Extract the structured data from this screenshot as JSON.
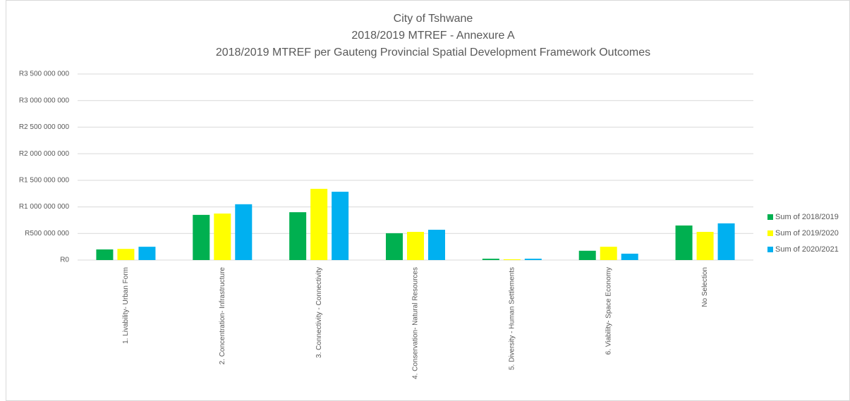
{
  "chart_data": {
    "type": "bar",
    "title": [
      "City of Tshwane",
      "2018/2019 MTREF - Annexure A",
      "2018/2019 MTREF per Gauteng Provincial Spatial Development Framework Outcomes"
    ],
    "categories": [
      "1. Livability- Urban Form",
      "2. Concentration- Infrastructure",
      "3. Connectivity - Connectivity",
      "4. Conservation- Natural Resources",
      "5. Diversity - Human Settlements",
      "6. Viability- Space Economy",
      "No Selection"
    ],
    "series": [
      {
        "name": "Sum of 2018/2019",
        "color": "#00b050",
        "values": [
          200000000,
          850000000,
          900000000,
          505000000,
          25000000,
          175000000,
          650000000
        ]
      },
      {
        "name": "Sum of 2019/2020",
        "color": "#ffff00",
        "values": [
          210000000,
          875000000,
          1340000000,
          530000000,
          15000000,
          250000000,
          530000000
        ]
      },
      {
        "name": "Sum of 2020/2021",
        "color": "#00b0f0",
        "values": [
          250000000,
          1050000000,
          1285000000,
          570000000,
          25000000,
          120000000,
          690000000
        ]
      }
    ],
    "ylim": [
      0,
      3500000000
    ],
    "yticks": [
      {
        "value": 0,
        "label": "R0"
      },
      {
        "value": 500000000,
        "label": "R500 000 000"
      },
      {
        "value": 1000000000,
        "label": "R1 000 000 000"
      },
      {
        "value": 1500000000,
        "label": "R1 500 000 000"
      },
      {
        "value": 2000000000,
        "label": "R2 000 000 000"
      },
      {
        "value": 2500000000,
        "label": "R2 500 000 000"
      },
      {
        "value": 3000000000,
        "label": "R3 000 000 000"
      },
      {
        "value": 3500000000,
        "label": "R3 500 000 000"
      }
    ],
    "grid": true,
    "legend": "right"
  }
}
